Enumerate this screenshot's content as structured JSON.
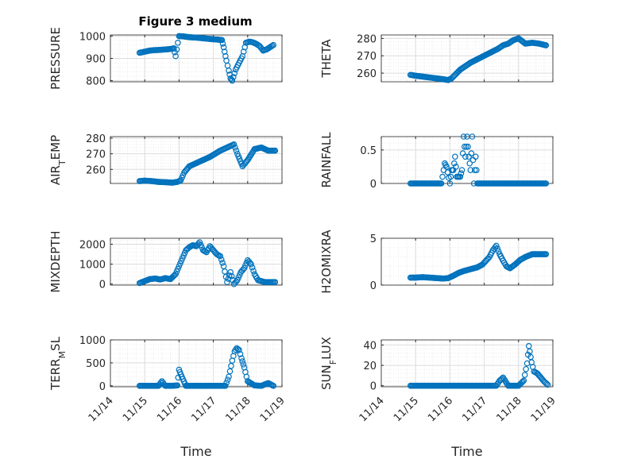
{
  "figure": {
    "title": "Figure 3 medium"
  },
  "colors": {
    "marker": "#0072BD",
    "axes": "#262626",
    "grid": "#dcdcdc",
    "minor_grid": "#ececec"
  },
  "chart_data": [
    {
      "type": "scatter",
      "position": "row1-left",
      "ylabel_main": "PRESSURE",
      "ylabel_sub": "",
      "xlabel": "",
      "title": "Figure 3 medium",
      "ylim": [
        795,
        1005
      ],
      "yticks": [
        800,
        900,
        1000
      ],
      "x": [
        "11/14.85",
        "11/15.00",
        "11/15.15",
        "11/15.30",
        "11/15.45",
        "11/15.60",
        "11/15.75",
        "11/15.85",
        "11/15.90",
        "11/16.00",
        "11/16.15",
        "11/16.30",
        "11/16.50",
        "11/16.70",
        "11/16.90",
        "11/17.05",
        "11/17.25",
        "11/17.30",
        "11/17.38",
        "11/17.45",
        "11/17.50",
        "11/17.55",
        "11/17.65",
        "11/17.75",
        "11/17.85",
        "11/17.95",
        "11/18.05",
        "11/18.15",
        "11/18.25",
        "11/18.35",
        "11/18.45",
        "11/18.55",
        "11/18.65",
        "11/18.75"
      ],
      "y": [
        925,
        930,
        935,
        937,
        938,
        940,
        942,
        945,
        910,
        1000,
        998,
        995,
        993,
        990,
        987,
        985,
        982,
        950,
        890,
        845,
        810,
        800,
        850,
        880,
        910,
        970,
        975,
        972,
        965,
        955,
        935,
        940,
        950,
        960
      ]
    },
    {
      "type": "scatter",
      "position": "row1-right",
      "ylabel_main": "THETA",
      "ylabel_sub": "",
      "xlabel": "",
      "ylim": [
        255,
        282
      ],
      "yticks": [
        260,
        270,
        280
      ],
      "x": [
        "11/14.85",
        "11/15.00",
        "11/15.20",
        "11/15.40",
        "11/15.60",
        "11/15.80",
        "11/15.95",
        "11/16.05",
        "11/16.15",
        "11/16.30",
        "11/16.45",
        "11/16.60",
        "11/16.80",
        "11/17.00",
        "11/17.20",
        "11/17.40",
        "11/17.55",
        "11/17.70",
        "11/17.85",
        "11/18.00",
        "11/18.20",
        "11/18.40",
        "11/18.60",
        "11/18.80"
      ],
      "y": [
        259,
        258.5,
        258,
        257.5,
        257,
        256.5,
        256,
        257,
        259,
        262,
        264,
        266,
        268,
        270,
        272,
        274,
        276,
        277,
        279,
        280,
        277,
        277.5,
        277,
        276
      ]
    },
    {
      "type": "scatter",
      "position": "row2-left",
      "ylabel_main": "AIR",
      "ylabel_sub": "T",
      "ylabel_end": "EMP",
      "xlabel": "",
      "ylim": [
        251,
        281
      ],
      "yticks": [
        260,
        270,
        280
      ],
      "x": [
        "11/14.85",
        "11/15.00",
        "11/15.20",
        "11/15.40",
        "11/15.60",
        "11/15.80",
        "11/15.95",
        "11/16.05",
        "11/16.15",
        "11/16.30",
        "11/16.50",
        "11/16.70",
        "11/16.90",
        "11/17.05",
        "11/17.20",
        "11/17.30",
        "11/17.40",
        "11/17.50",
        "11/17.60",
        "11/17.70",
        "11/17.85",
        "11/18.00",
        "11/18.20",
        "11/18.40",
        "11/18.60",
        "11/18.80"
      ],
      "y": [
        252.5,
        252.8,
        252.5,
        252,
        251.8,
        251.5,
        252,
        253,
        258,
        262,
        264,
        266,
        268,
        270,
        272,
        273,
        274,
        275,
        276,
        270,
        262,
        266,
        273,
        274,
        272,
        272
      ]
    },
    {
      "type": "scatter",
      "position": "row2-right",
      "ylabel_main": "RAINFALL",
      "ylabel_sub": "",
      "xlabel": "",
      "ylim": [
        0,
        0.7
      ],
      "yticks": [
        0,
        0.5
      ],
      "x": [
        "11/14.85",
        "11/15.00",
        "11/15.20",
        "11/15.40",
        "11/15.60",
        "11/15.75",
        "11/15.85",
        "11/15.90",
        "11/16.00",
        "11/16.05",
        "11/16.10",
        "11/16.15",
        "11/16.20",
        "11/16.30",
        "11/16.35",
        "11/16.40",
        "11/16.45",
        "11/16.50",
        "11/16.55",
        "11/16.60",
        "11/16.65",
        "11/16.70",
        "11/16.75",
        "11/16.80",
        "11/17.00",
        "11/17.20",
        "11/17.40",
        "11/17.60",
        "11/17.80",
        "11/18.00",
        "11/18.20",
        "11/18.40",
        "11/18.60",
        "11/18.80"
      ],
      "y": [
        0,
        0,
        0,
        0,
        0,
        0,
        0.3,
        0.25,
        0,
        0.2,
        0.2,
        0.4,
        0.1,
        0.1,
        0.2,
        0.7,
        0.4,
        0.7,
        0.4,
        0.2,
        0.7,
        0,
        0.4,
        0,
        0,
        0,
        0,
        0,
        0,
        0,
        0,
        0,
        0,
        0
      ]
    },
    {
      "type": "scatter",
      "position": "row3-left",
      "ylabel_main": "MIXDEPTH",
      "ylabel_sub": "",
      "xlabel": "",
      "ylim": [
        -50,
        2300
      ],
      "yticks": [
        0,
        1000,
        2000
      ],
      "x": [
        "11/14.85",
        "11/15.00",
        "11/15.15",
        "11/15.30",
        "11/15.45",
        "11/15.60",
        "11/15.75",
        "11/15.90",
        "11/16.00",
        "11/16.10",
        "11/16.20",
        "11/16.30",
        "11/16.40",
        "11/16.50",
        "11/16.60",
        "11/16.70",
        "11/16.80",
        "11/16.90",
        "11/17.00",
        "11/17.10",
        "11/17.20",
        "11/17.30",
        "11/17.40",
        "11/17.50",
        "11/17.60",
        "11/17.70",
        "11/17.80",
        "11/17.90",
        "11/18.00",
        "11/18.10",
        "11/18.20",
        "11/18.30",
        "11/18.40",
        "11/18.50",
        "11/18.60",
        "11/18.70",
        "11/18.80"
      ],
      "y": [
        50,
        150,
        250,
        280,
        230,
        300,
        250,
        500,
        900,
        1300,
        1700,
        1850,
        1950,
        1900,
        2100,
        1700,
        1600,
        1900,
        1700,
        1500,
        1400,
        900,
        100,
        600,
        0,
        200,
        600,
        800,
        1200,
        1000,
        500,
        200,
        150,
        100,
        100,
        100,
        100
      ]
    },
    {
      "type": "scatter",
      "position": "row3-right",
      "ylabel_main": "H2OMIXRA",
      "ylabel_sub": "",
      "xlabel": "",
      "ylim": [
        0,
        5
      ],
      "yticks": [
        0,
        5
      ],
      "x": [
        "11/14.85",
        "11/15.00",
        "11/15.20",
        "11/15.40",
        "11/15.60",
        "11/15.80",
        "11/15.95",
        "11/16.10",
        "11/16.25",
        "11/16.40",
        "11/16.60",
        "11/16.80",
        "11/16.95",
        "11/17.05",
        "11/17.15",
        "11/17.25",
        "11/17.35",
        "11/17.45",
        "11/17.55",
        "11/17.65",
        "11/17.75",
        "11/17.90",
        "11/18.05",
        "11/18.20",
        "11/18.40",
        "11/18.60",
        "11/18.80"
      ],
      "y": [
        0.8,
        0.8,
        0.85,
        0.8,
        0.75,
        0.7,
        0.75,
        1.0,
        1.3,
        1.5,
        1.7,
        1.9,
        2.2,
        2.6,
        3.0,
        3.7,
        4.2,
        3.3,
        2.6,
        2.0,
        1.8,
        2.2,
        2.7,
        3.0,
        3.3,
        3.3,
        3.3
      ]
    },
    {
      "type": "scatter",
      "position": "row4-left",
      "ylabel_main": "TERR",
      "ylabel_sub": "M",
      "ylabel_end": "SL",
      "xlabel": "Time",
      "ylim": [
        -20,
        1000
      ],
      "yticks": [
        0,
        500,
        1000
      ],
      "xticklabels": [
        "11/14",
        "11/15",
        "11/16",
        "11/17",
        "11/18",
        "11/19"
      ],
      "x": [
        "11/14.85",
        "11/15.00",
        "11/15.20",
        "11/15.40",
        "11/15.50",
        "11/15.60",
        "11/15.80",
        "11/15.95",
        "11/16.00",
        "11/16.05",
        "11/16.20",
        "11/16.50",
        "11/16.80",
        "11/17.00",
        "11/17.20",
        "11/17.35",
        "11/17.45",
        "11/17.55",
        "11/17.62",
        "11/17.68",
        "11/17.75",
        "11/17.82",
        "11/17.90",
        "11/18.00",
        "11/18.20",
        "11/18.40",
        "11/18.60",
        "11/18.75"
      ],
      "y": [
        0,
        0,
        0,
        0,
        100,
        0,
        0,
        10,
        350,
        250,
        0,
        0,
        0,
        0,
        0,
        0,
        200,
        550,
        750,
        820,
        780,
        600,
        400,
        100,
        10,
        0,
        60,
        0
      ]
    },
    {
      "type": "scatter",
      "position": "row4-right",
      "ylabel_main": "SUN",
      "ylabel_sub": "F",
      "ylabel_end": "LUX",
      "xlabel": "Time",
      "ylim": [
        -1,
        45
      ],
      "yticks": [
        0,
        20,
        40
      ],
      "xticklabels": [
        "11/14",
        "11/15",
        "11/16",
        "11/17",
        "11/18",
        "11/19"
      ],
      "x": [
        "11/14.85",
        "11/15.00",
        "11/15.20",
        "11/15.40",
        "11/15.60",
        "11/15.80",
        "11/16.00",
        "11/16.20",
        "11/16.40",
        "11/16.60",
        "11/16.80",
        "11/17.00",
        "11/17.15",
        "11/17.25",
        "11/17.35",
        "11/17.45",
        "11/17.55",
        "11/17.70",
        "11/17.85",
        "11/18.00",
        "11/18.15",
        "11/18.25",
        "11/18.30",
        "11/18.38",
        "11/18.45",
        "11/18.55",
        "11/18.65",
        "11/18.75",
        "11/18.85"
      ],
      "y": [
        0,
        0,
        0,
        0,
        0,
        0,
        0,
        0,
        0,
        0,
        0,
        0,
        0,
        0,
        0,
        5,
        8,
        0,
        0,
        0,
        5,
        22,
        39,
        23,
        14,
        12,
        8,
        4,
        1
      ]
    }
  ]
}
